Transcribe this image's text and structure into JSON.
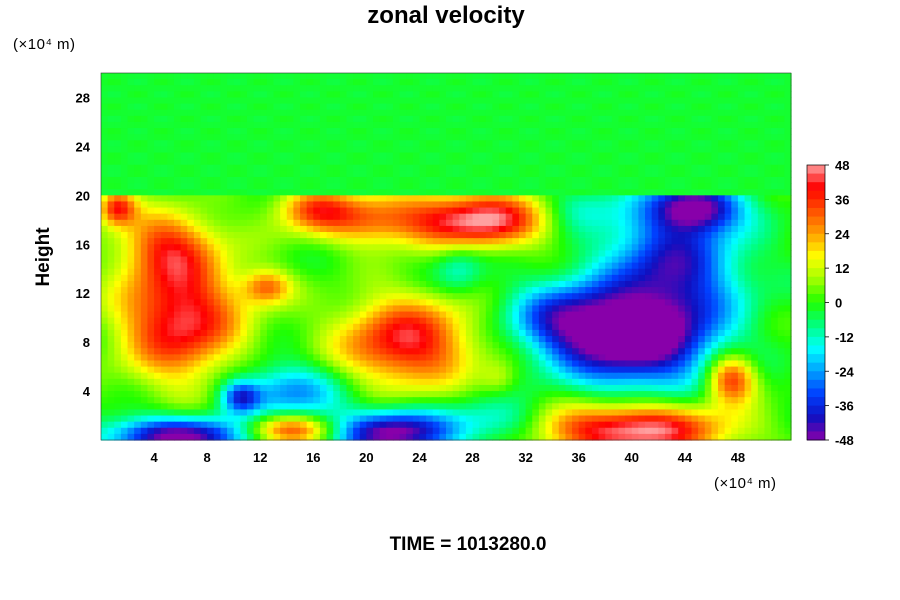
{
  "chart_data": {
    "type": "heatmap",
    "title": "zonal velocity",
    "ylabel": "Height",
    "x_unit": "(×10⁴ m)",
    "y_unit": "(×10⁴ m)",
    "xlim": [
      0,
      52
    ],
    "ylim": [
      0,
      30
    ],
    "x_ticks": [
      "4",
      "8",
      "12",
      "16",
      "20",
      "24",
      "28",
      "32",
      "36",
      "40",
      "44",
      "48"
    ],
    "y_ticks": [
      "4",
      "8",
      "12",
      "16",
      "20",
      "24",
      "28"
    ],
    "colorbar": {
      "min": -48,
      "max": 48,
      "ticks": [
        "48",
        "36",
        "24",
        "12",
        "0",
        "-12",
        "-24",
        "-36",
        "-48"
      ],
      "colors": [
        "#8800aa",
        "#1010c0",
        "#0040ff",
        "#00a0ff",
        "#00ffff",
        "#00ff80",
        "#20ff00",
        "#a0ff00",
        "#ffff00",
        "#ffa000",
        "#ff5000",
        "#ff0000",
        "#ffa0a0"
      ]
    },
    "features": [
      {
        "x": 6,
        "y": 10,
        "sx": 3.2,
        "sy": 3.6,
        "value": 45
      },
      {
        "x": 5,
        "y": 16,
        "sx": 2.5,
        "sy": 2.0,
        "value": 28
      },
      {
        "x": 23,
        "y": 8,
        "sx": 3.6,
        "sy": 2.6,
        "value": 42
      },
      {
        "x": 29,
        "y": 18,
        "sx": 3.2,
        "sy": 1.6,
        "value": 45
      },
      {
        "x": 21,
        "y": 18,
        "sx": 4.0,
        "sy": 1.5,
        "value": 30
      },
      {
        "x": 16,
        "y": 19,
        "sx": 2.0,
        "sy": 1.2,
        "value": 24
      },
      {
        "x": 12.5,
        "y": 12.5,
        "sx": 1.3,
        "sy": 1.0,
        "value": 26
      },
      {
        "x": 1.2,
        "y": 19,
        "sx": 1.0,
        "sy": 1.0,
        "value": 36
      },
      {
        "x": 47.5,
        "y": 5,
        "sx": 1.3,
        "sy": 1.4,
        "value": 38
      },
      {
        "x": 40,
        "y": 0.8,
        "sx": 5.0,
        "sy": 1.5,
        "value": 50
      },
      {
        "x": 14,
        "y": 0.8,
        "sx": 2.5,
        "sy": 0.9,
        "value": 38
      },
      {
        "x": 30,
        "y": 5,
        "sx": 1.0,
        "sy": 1.0,
        "value": 10
      },
      {
        "x": 40,
        "y": 8,
        "sx": 4.0,
        "sy": 2.6,
        "value": -50
      },
      {
        "x": 43,
        "y": 14,
        "sx": 3.5,
        "sy": 4.0,
        "value": -40
      },
      {
        "x": 45,
        "y": 19,
        "sx": 2.2,
        "sy": 1.3,
        "value": -42
      },
      {
        "x": 35,
        "y": 10,
        "sx": 3.0,
        "sy": 2.0,
        "value": -30
      },
      {
        "x": 14,
        "y": 4,
        "sx": 3.0,
        "sy": 1.6,
        "value": -26
      },
      {
        "x": 10.5,
        "y": 3.5,
        "sx": 1.0,
        "sy": 0.9,
        "value": -30
      },
      {
        "x": 6,
        "y": 0.3,
        "sx": 4.0,
        "sy": 1.1,
        "value": -50
      },
      {
        "x": 22,
        "y": 0.6,
        "sx": 3.2,
        "sy": 1.3,
        "value": -50
      },
      {
        "x": 27,
        "y": 14,
        "sx": 1.3,
        "sy": 1.5,
        "value": -14
      },
      {
        "x": 36,
        "y": 19,
        "sx": 2.0,
        "sy": 1.3,
        "value": -12
      },
      {
        "x": 30,
        "y": 1.5,
        "sx": 2.5,
        "sy": 1.3,
        "value": -18
      }
    ],
    "upper_layer": {
      "value": -3,
      "y_from": 20
    }
  },
  "footer": {
    "time_label": "TIME = 1013280.0"
  }
}
